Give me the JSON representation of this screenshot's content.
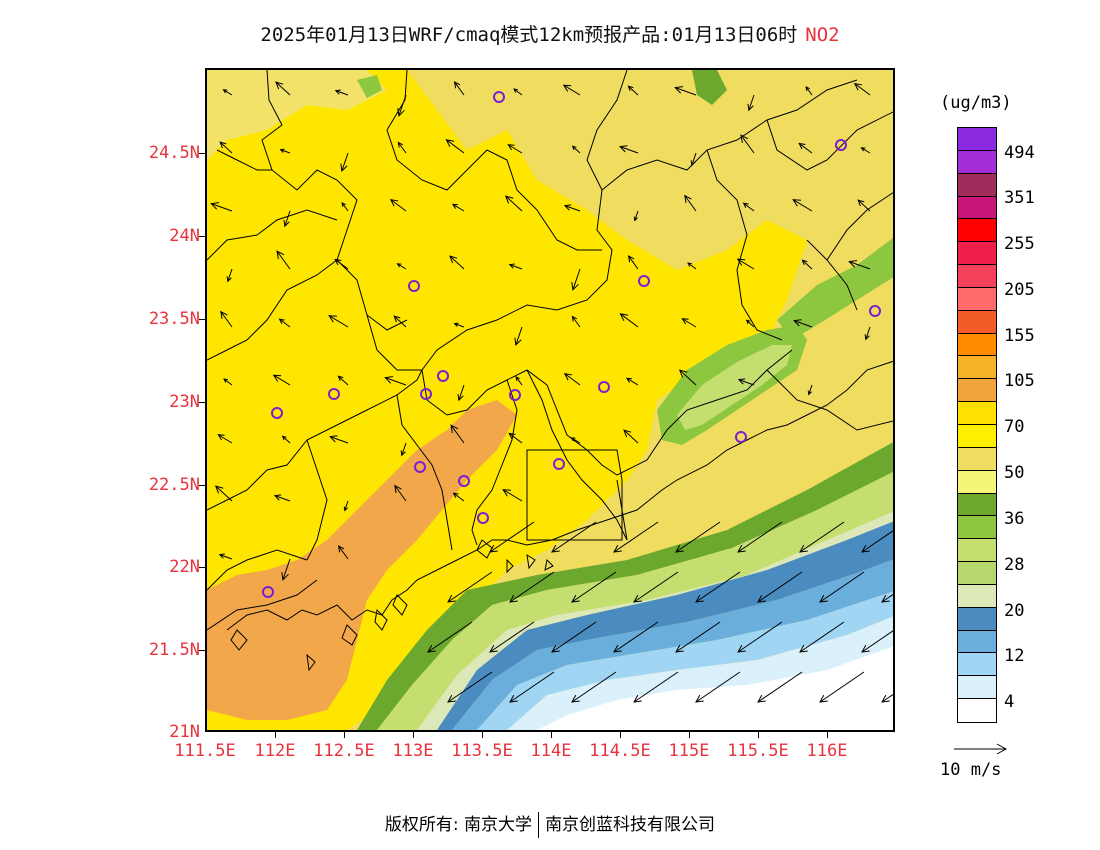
{
  "title": {
    "main": "2025年01月13日WRF/cmaq模式12km预报产品:01月13日06时",
    "species": "NO2",
    "species_color": "#e8323c"
  },
  "axes": {
    "y_labels": [
      "24.5N",
      "24N",
      "23.5N",
      "23N",
      "22.5N",
      "22N",
      "21.5N",
      "21N"
    ],
    "x_labels": [
      "111.5E",
      "112E",
      "112.5E",
      "113E",
      "113.5E",
      "114E",
      "114.5E",
      "115E",
      "115.5E",
      "116E"
    ],
    "label_color": "#e8323c"
  },
  "colorbar": {
    "unit": "(ug/m3)",
    "labels": [
      "494",
      "351",
      "255",
      "205",
      "155",
      "105",
      "70",
      "50",
      "36",
      "28",
      "20",
      "12",
      "4"
    ],
    "colors_top_to_bottom": [
      "#8a2be2",
      "#a52ed6",
      "#a02c5c",
      "#c7157a",
      "#ff0000",
      "#f0204a",
      "#f4405a",
      "#ff6a6a",
      "#f25c26",
      "#ff8c00",
      "#f7b22a",
      "#f2a33a",
      "#ffe000",
      "#fff000",
      "#f0dd60",
      "#f5f57a",
      "#6ba82d",
      "#8dc63f",
      "#c4de70",
      "#b8d86e",
      "#dde8b8",
      "#4a8cc0",
      "#6aaedc",
      "#a0d6f4",
      "#daf0fa",
      "#ffffff"
    ]
  },
  "wind_scale": {
    "label": "10 m/s"
  },
  "footer": {
    "left": "版权所有: 南京大学",
    "right": "南京创蓝科技有限公司"
  },
  "map": {
    "region": "South China coast (Guangdong / Hong Kong)",
    "pollutant": "NO2",
    "station_marker_color": "#7a1fd1",
    "dominant_level": "50-70 ug/m3",
    "wind_direction": "northeasterly, stronger over the sea"
  }
}
